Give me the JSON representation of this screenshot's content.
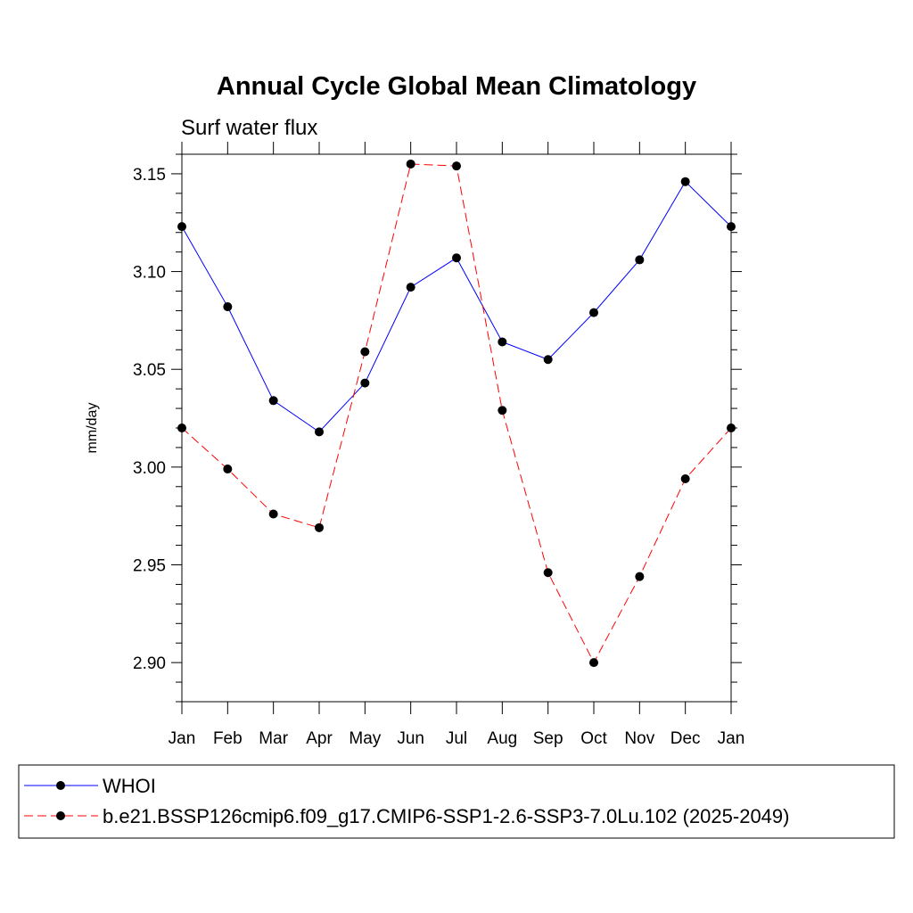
{
  "chart_data": {
    "type": "line",
    "title": "Annual Cycle Global Mean Climatology",
    "subtitle": "Surf water flux",
    "xlabel": "",
    "ylabel": "mm/day",
    "categories": [
      "Jan",
      "Feb",
      "Mar",
      "Apr",
      "May",
      "Jun",
      "Jul",
      "Aug",
      "Sep",
      "Oct",
      "Nov",
      "Dec",
      "Jan"
    ],
    "ylim": [
      2.88,
      3.16
    ],
    "yticks": [
      2.9,
      2.95,
      3.0,
      3.05,
      3.1,
      3.15
    ],
    "ytick_labels": [
      "2.90",
      "2.95",
      "3.00",
      "3.05",
      "3.10",
      "3.15"
    ],
    "grid": false,
    "legend_position": "bottom",
    "series": [
      {
        "name": "WHOI",
        "color": "#0000ff",
        "style": "solid",
        "values": [
          3.123,
          3.082,
          3.034,
          3.018,
          3.043,
          3.092,
          3.107,
          3.064,
          3.055,
          3.079,
          3.106,
          3.146,
          3.123
        ]
      },
      {
        "name": "b.e21.BSSP126cmip6.f09_g17.CMIP6-SSP1-2.6-SSP3-7.0Lu.102 (2025-2049)",
        "color": "#ff0000",
        "style": "dashed",
        "values": [
          3.02,
          2.999,
          2.976,
          2.969,
          3.059,
          3.155,
          3.154,
          3.029,
          2.946,
          2.9,
          2.944,
          2.994,
          3.02
        ]
      }
    ]
  }
}
